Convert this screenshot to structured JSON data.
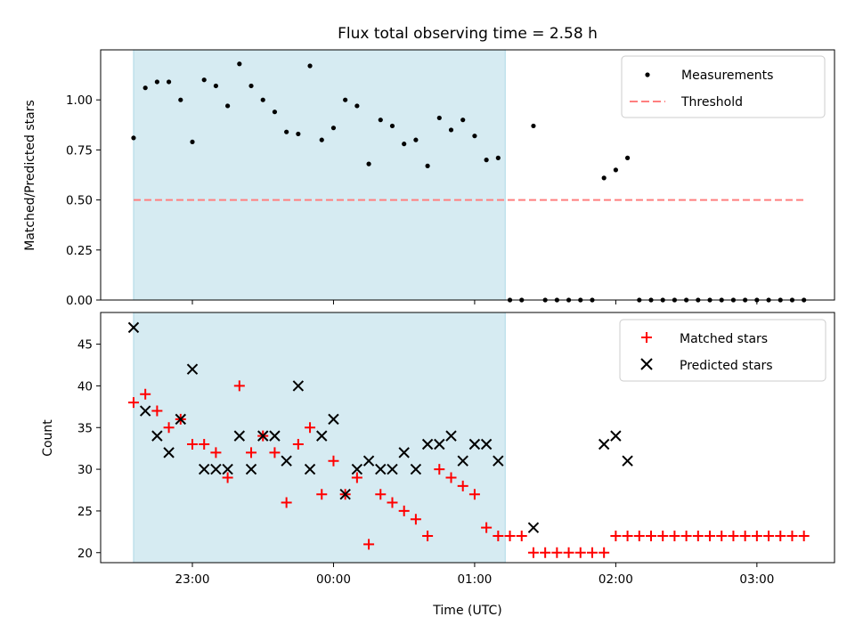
{
  "title": "Flux total observing time = 2.58 h",
  "colors": {
    "shade": "#add8e6",
    "measurement": "#000000",
    "threshold": "#ff7f7f",
    "matched": "#ff0000",
    "predicted": "#000000"
  },
  "chart_data": [
    {
      "type": "scatter",
      "ylabel": "Matched/Predicted stars",
      "xlim": [
        "22:21",
        "03:33"
      ],
      "ylim": [
        0,
        1.25
      ],
      "yticks": [
        0.0,
        0.25,
        0.5,
        0.75,
        1.0
      ],
      "ytick_labels": [
        "0.00",
        "0.25",
        "0.50",
        "0.75",
        "1.00"
      ],
      "shaded_span": [
        "22:35",
        "01:13"
      ],
      "legend": "top-right",
      "legend_labels": [
        "Measurements",
        "Threshold"
      ],
      "threshold": {
        "name": "Threshold",
        "y": 0.5,
        "x": [
          "22:35",
          "03:20"
        ]
      },
      "series": [
        {
          "name": "Measurements",
          "x": [
            "22:35",
            "22:40",
            "22:45",
            "22:50",
            "22:55",
            "23:00",
            "23:05",
            "23:10",
            "23:15",
            "23:20",
            "23:25",
            "23:30",
            "23:35",
            "23:40",
            "23:45",
            "23:50",
            "23:55",
            "00:00",
            "00:05",
            "00:10",
            "00:15",
            "00:20",
            "00:25",
            "00:30",
            "00:35",
            "00:40",
            "00:45",
            "00:50",
            "00:55",
            "01:00",
            "01:05",
            "01:10",
            "01:15",
            "01:20",
            "01:25",
            "01:30",
            "01:35",
            "01:40",
            "01:45",
            "01:50",
            "01:55",
            "02:00",
            "02:05",
            "02:10",
            "02:15",
            "02:20",
            "02:25",
            "02:30",
            "02:35",
            "02:40",
            "02:45",
            "02:50",
            "02:55",
            "03:00",
            "03:05",
            "03:10",
            "03:15",
            "03:20"
          ],
          "values": [
            0.81,
            1.06,
            1.09,
            1.09,
            1.0,
            0.79,
            1.1,
            1.07,
            0.97,
            1.18,
            1.07,
            1.0,
            0.94,
            0.84,
            0.83,
            1.17,
            0.8,
            0.86,
            1.0,
            0.97,
            0.68,
            0.9,
            0.87,
            0.78,
            0.8,
            0.67,
            0.91,
            0.85,
            0.9,
            0.82,
            0.7,
            0.71,
            0.0,
            0.0,
            0.87,
            0.0,
            0.0,
            0.0,
            0.0,
            0.0,
            0.61,
            0.65,
            0.71,
            0.0,
            0.0,
            0.0,
            0.0,
            0.0,
            0.0,
            0.0,
            0.0,
            0.0,
            0.0,
            0.0,
            0.0,
            0.0,
            0.0,
            0.0
          ]
        }
      ]
    },
    {
      "type": "scatter",
      "xlabel": "Time (UTC)",
      "ylabel": "Count",
      "xlim": [
        "22:21",
        "03:33"
      ],
      "ylim": [
        18.8,
        48.8
      ],
      "yticks": [
        20,
        25,
        30,
        35,
        40,
        45
      ],
      "ytick_labels": [
        "20",
        "25",
        "30",
        "35",
        "40",
        "45"
      ],
      "xticks": [
        "23:00",
        "00:00",
        "01:00",
        "02:00",
        "03:00"
      ],
      "shaded_span": [
        "22:35",
        "01:13"
      ],
      "legend": "top-right",
      "legend_labels": [
        "Matched stars",
        "Predicted stars"
      ],
      "series": [
        {
          "name": "Matched stars",
          "x": [
            "22:35",
            "22:40",
            "22:45",
            "22:50",
            "22:55",
            "23:00",
            "23:05",
            "23:10",
            "23:15",
            "23:20",
            "23:25",
            "23:30",
            "23:35",
            "23:40",
            "23:45",
            "23:50",
            "23:55",
            "00:00",
            "00:05",
            "00:10",
            "00:15",
            "00:20",
            "00:25",
            "00:30",
            "00:35",
            "00:40",
            "00:45",
            "00:50",
            "00:55",
            "01:00",
            "01:05",
            "01:10",
            "01:15",
            "01:20",
            "01:25",
            "01:30",
            "01:35",
            "01:40",
            "01:45",
            "01:50",
            "01:55",
            "02:00",
            "02:05",
            "02:10",
            "02:15",
            "02:20",
            "02:25",
            "02:30",
            "02:35",
            "02:40",
            "02:45",
            "02:50",
            "02:55",
            "03:00",
            "03:05",
            "03:10",
            "03:15",
            "03:20"
          ],
          "values": [
            38,
            39,
            37,
            35,
            36,
            33,
            33,
            32,
            29,
            40,
            32,
            34,
            32,
            26,
            33,
            35,
            27,
            31,
            27,
            29,
            21,
            27,
            26,
            25,
            24,
            22,
            30,
            29,
            28,
            27,
            23,
            22,
            22,
            22,
            20,
            20,
            20,
            20,
            20,
            20,
            20,
            22,
            22,
            22,
            22,
            22,
            22,
            22,
            22,
            22,
            22,
            22,
            22,
            22,
            22,
            22,
            22,
            22
          ]
        },
        {
          "name": "Predicted stars",
          "x": [
            "22:35",
            "22:40",
            "22:45",
            "22:50",
            "22:55",
            "23:00",
            "23:05",
            "23:10",
            "23:15",
            "23:20",
            "23:25",
            "23:30",
            "23:35",
            "23:40",
            "23:45",
            "23:50",
            "23:55",
            "00:00",
            "00:05",
            "00:10",
            "00:15",
            "00:20",
            "00:25",
            "00:30",
            "00:35",
            "00:40",
            "00:45",
            "00:50",
            "00:55",
            "01:00",
            "01:05",
            "01:10",
            "01:25",
            "01:55",
            "02:00",
            "02:05"
          ],
          "values": [
            47,
            37,
            34,
            32,
            36,
            42,
            30,
            30,
            30,
            34,
            30,
            34,
            34,
            31,
            40,
            30,
            34,
            36,
            27,
            30,
            31,
            30,
            30,
            32,
            30,
            33,
            33,
            34,
            31,
            33,
            33,
            31,
            23,
            33,
            34,
            31
          ]
        }
      ]
    }
  ]
}
